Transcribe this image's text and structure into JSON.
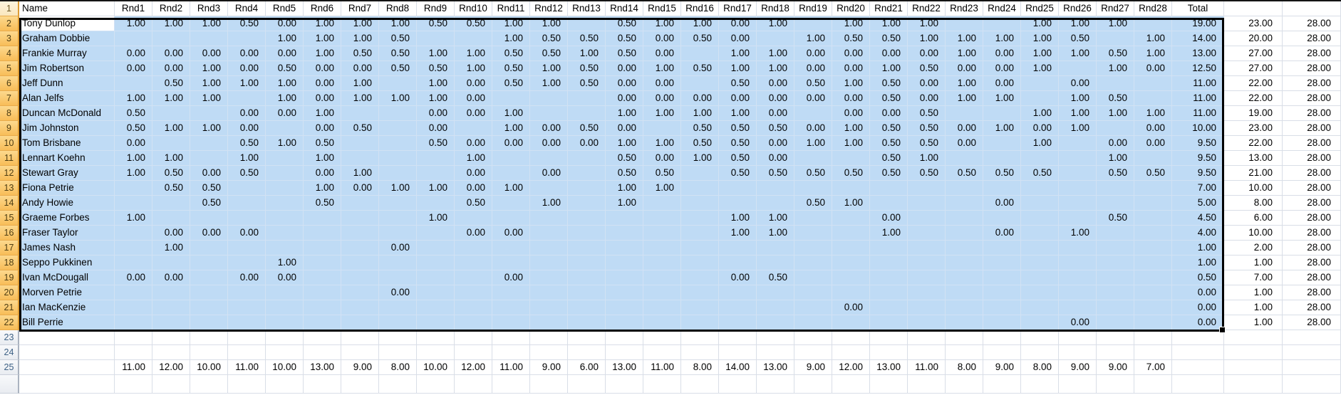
{
  "colors": {
    "selection_fill": "#BFDBF5",
    "selection_border": "#000000",
    "row_header_selected_top": "#FCD98E",
    "row_header_selected_bottom": "#F8BD58",
    "row_header_normal": "#EFF1F4",
    "row_header_normal_text": "#3D6185",
    "cell_text": "#000000"
  },
  "header": {
    "row_num": "1",
    "name_label": "Name",
    "round_labels": [
      "Rnd1",
      "Rnd2",
      "Rnd3",
      "Rnd4",
      "Rnd5",
      "Rnd6",
      "Rnd7",
      "Rnd8",
      "Rnd9",
      "Rnd10",
      "Rnd11",
      "Rnd12",
      "Rnd13",
      "Rnd14",
      "Rnd15",
      "Rnd16",
      "Rnd17",
      "Rnd18",
      "Rnd19",
      "Rnd20",
      "Rnd21",
      "Rnd22",
      "Rnd23",
      "Rnd24",
      "Rnd25",
      "Rnd26",
      "Rnd27",
      "Rnd28"
    ],
    "total_label": "Total"
  },
  "players": [
    {
      "row": "2",
      "name": "Tony Dunlop",
      "rounds": [
        "1.00",
        "1.00",
        "1.00",
        "0.50",
        "0.00",
        "1.00",
        "1.00",
        "1.00",
        "0.50",
        "0.50",
        "1.00",
        "1.00",
        "",
        "0.50",
        "1.00",
        "1.00",
        "0.00",
        "1.00",
        "",
        "1.00",
        "1.00",
        "1.00",
        "",
        "",
        "1.00",
        "1.00",
        "1.00",
        ""
      ],
      "total": "19.00",
      "played": "23.00",
      "max": "28.00"
    },
    {
      "row": "3",
      "name": "Graham Dobbie",
      "rounds": [
        "",
        "",
        "",
        "",
        "1.00",
        "1.00",
        "1.00",
        "0.50",
        "",
        "",
        "1.00",
        "0.50",
        "0.50",
        "0.50",
        "0.00",
        "0.50",
        "0.00",
        "",
        "1.00",
        "0.50",
        "0.50",
        "1.00",
        "1.00",
        "1.00",
        "1.00",
        "0.50",
        "",
        "1.00"
      ],
      "total": "14.00",
      "played": "20.00",
      "max": "28.00"
    },
    {
      "row": "4",
      "name": "Frankie Murray",
      "rounds": [
        "0.00",
        "0.00",
        "0.00",
        "0.00",
        "0.00",
        "1.00",
        "0.50",
        "0.50",
        "1.00",
        "1.00",
        "0.50",
        "0.50",
        "1.00",
        "0.50",
        "0.00",
        "",
        "1.00",
        "1.00",
        "0.00",
        "0.00",
        "0.00",
        "0.00",
        "1.00",
        "0.00",
        "1.00",
        "1.00",
        "0.50",
        "1.00"
      ],
      "total": "13.00",
      "played": "27.00",
      "max": "28.00"
    },
    {
      "row": "5",
      "name": "Jim Robertson",
      "rounds": [
        "0.00",
        "0.00",
        "1.00",
        "0.00",
        "0.50",
        "0.00",
        "0.00",
        "0.50",
        "0.50",
        "1.00",
        "0.50",
        "1.00",
        "0.50",
        "0.00",
        "1.00",
        "0.50",
        "1.00",
        "1.00",
        "0.00",
        "0.00",
        "1.00",
        "0.50",
        "0.00",
        "0.00",
        "1.00",
        "",
        "1.00",
        "0.00"
      ],
      "total": "12.50",
      "played": "27.00",
      "max": "28.00"
    },
    {
      "row": "6",
      "name": "Jeff Dunn",
      "rounds": [
        "",
        "0.50",
        "1.00",
        "1.00",
        "1.00",
        "0.00",
        "1.00",
        "",
        "1.00",
        "0.00",
        "0.50",
        "1.00",
        "0.50",
        "0.00",
        "0.00",
        "",
        "0.50",
        "0.00",
        "0.50",
        "1.00",
        "0.50",
        "0.00",
        "1.00",
        "0.00",
        "",
        "0.00",
        "",
        ""
      ],
      "total": "11.00",
      "played": "22.00",
      "max": "28.00"
    },
    {
      "row": "7",
      "name": "Alan Jelfs",
      "rounds": [
        "1.00",
        "1.00",
        "1.00",
        "",
        "1.00",
        "0.00",
        "1.00",
        "1.00",
        "1.00",
        "0.00",
        "",
        "",
        "",
        "0.00",
        "0.00",
        "0.00",
        "0.00",
        "0.00",
        "0.00",
        "0.00",
        "0.50",
        "0.00",
        "1.00",
        "1.00",
        "",
        "1.00",
        "0.50",
        ""
      ],
      "total": "11.00",
      "played": "22.00",
      "max": "28.00"
    },
    {
      "row": "8",
      "name": "Duncan McDonald",
      "rounds": [
        "0.50",
        "",
        "",
        "0.00",
        "0.00",
        "1.00",
        "",
        "",
        "0.00",
        "0.00",
        "1.00",
        "",
        "",
        "1.00",
        "1.00",
        "1.00",
        "1.00",
        "0.00",
        "",
        "0.00",
        "0.00",
        "0.50",
        "",
        "",
        "1.00",
        "1.00",
        "1.00",
        "1.00"
      ],
      "total": "11.00",
      "played": "19.00",
      "max": "28.00"
    },
    {
      "row": "9",
      "name": "Jim Johnston",
      "rounds": [
        "0.50",
        "1.00",
        "1.00",
        "0.00",
        "",
        "0.00",
        "0.50",
        "",
        "0.00",
        "",
        "1.00",
        "0.00",
        "0.50",
        "0.00",
        "",
        "0.50",
        "0.50",
        "0.50",
        "0.00",
        "1.00",
        "0.50",
        "0.50",
        "0.00",
        "1.00",
        "0.00",
        "1.00",
        "",
        "0.00"
      ],
      "total": "10.00",
      "played": "23.00",
      "max": "28.00"
    },
    {
      "row": "10",
      "name": "Tom Brisbane",
      "rounds": [
        "0.00",
        "",
        "",
        "0.50",
        "1.00",
        "0.50",
        "",
        "",
        "0.50",
        "0.00",
        "0.00",
        "0.00",
        "0.00",
        "1.00",
        "1.00",
        "0.50",
        "0.50",
        "0.00",
        "1.00",
        "1.00",
        "0.50",
        "0.50",
        "0.00",
        "",
        "1.00",
        "",
        "0.00",
        "0.00"
      ],
      "total": "9.50",
      "played": "22.00",
      "max": "28.00"
    },
    {
      "row": "11",
      "name": "Lennart Koehn",
      "rounds": [
        "1.00",
        "1.00",
        "",
        "1.00",
        "",
        "1.00",
        "",
        "",
        "",
        "1.00",
        "",
        "",
        "",
        "0.50",
        "0.00",
        "1.00",
        "0.50",
        "0.00",
        "",
        "",
        "0.50",
        "1.00",
        "",
        "",
        "",
        "",
        "1.00",
        ""
      ],
      "total": "9.50",
      "played": "13.00",
      "max": "28.00"
    },
    {
      "row": "12",
      "name": "Stewart Gray",
      "rounds": [
        "1.00",
        "0.50",
        "0.00",
        "0.50",
        "",
        "0.00",
        "1.00",
        "",
        "",
        "0.00",
        "",
        "0.00",
        "",
        "0.50",
        "0.50",
        "",
        "0.50",
        "0.50",
        "0.50",
        "0.50",
        "0.50",
        "0.50",
        "0.50",
        "0.50",
        "0.50",
        "",
        "0.50",
        "0.50"
      ],
      "total": "9.50",
      "played": "21.00",
      "max": "28.00"
    },
    {
      "row": "13",
      "name": "Fiona Petrie",
      "rounds": [
        "",
        "0.50",
        "0.50",
        "",
        "",
        "1.00",
        "0.00",
        "1.00",
        "1.00",
        "0.00",
        "1.00",
        "",
        "",
        "1.00",
        "1.00",
        "",
        "",
        "",
        "",
        "",
        "",
        "",
        "",
        "",
        "",
        "",
        "",
        ""
      ],
      "total": "7.00",
      "played": "10.00",
      "max": "28.00"
    },
    {
      "row": "14",
      "name": "Andy Howie",
      "rounds": [
        "",
        "",
        "0.50",
        "",
        "",
        "0.50",
        "",
        "",
        "",
        "0.50",
        "",
        "1.00",
        "",
        "1.00",
        "",
        "",
        "",
        "",
        "0.50",
        "1.00",
        "",
        "",
        "",
        "0.00",
        "",
        "",
        "",
        ""
      ],
      "total": "5.00",
      "played": "8.00",
      "max": "28.00"
    },
    {
      "row": "15",
      "name": "Graeme Forbes",
      "rounds": [
        "1.00",
        "",
        "",
        "",
        "",
        "",
        "",
        "",
        "1.00",
        "",
        "",
        "",
        "",
        "",
        "",
        "",
        "1.00",
        "1.00",
        "",
        "",
        "0.00",
        "",
        "",
        "",
        "",
        "",
        "0.50",
        ""
      ],
      "total": "4.50",
      "played": "6.00",
      "max": "28.00"
    },
    {
      "row": "16",
      "name": "Fraser Taylor",
      "rounds": [
        "",
        "0.00",
        "0.00",
        "0.00",
        "",
        "",
        "",
        "",
        "",
        "0.00",
        "0.00",
        "",
        "",
        "",
        "",
        "",
        "1.00",
        "1.00",
        "",
        "",
        "1.00",
        "",
        "",
        "0.00",
        "",
        "1.00",
        "",
        ""
      ],
      "total": "4.00",
      "played": "10.00",
      "max": "28.00"
    },
    {
      "row": "17",
      "name": "James Nash",
      "rounds": [
        "",
        "1.00",
        "",
        "",
        "",
        "",
        "",
        "0.00",
        "",
        "",
        "",
        "",
        "",
        "",
        "",
        "",
        "",
        "",
        "",
        "",
        "",
        "",
        "",
        "",
        "",
        "",
        "",
        ""
      ],
      "total": "1.00",
      "played": "2.00",
      "max": "28.00"
    },
    {
      "row": "18",
      "name": "Seppo Pukkinen",
      "rounds": [
        "",
        "",
        "",
        "",
        "1.00",
        "",
        "",
        "",
        "",
        "",
        "",
        "",
        "",
        "",
        "",
        "",
        "",
        "",
        "",
        "",
        "",
        "",
        "",
        "",
        "",
        "",
        "",
        ""
      ],
      "total": "1.00",
      "played": "1.00",
      "max": "28.00"
    },
    {
      "row": "19",
      "name": "Ivan McDougall",
      "rounds": [
        "0.00",
        "0.00",
        "",
        "0.00",
        "0.00",
        "",
        "",
        "",
        "",
        "",
        "0.00",
        "",
        "",
        "",
        "",
        "",
        "0.00",
        "0.50",
        "",
        "",
        "",
        "",
        "",
        "",
        "",
        "",
        "",
        ""
      ],
      "total": "0.50",
      "played": "7.00",
      "max": "28.00"
    },
    {
      "row": "20",
      "name": "Morven Petrie",
      "rounds": [
        "",
        "",
        "",
        "",
        "",
        "",
        "",
        "0.00",
        "",
        "",
        "",
        "",
        "",
        "",
        "",
        "",
        "",
        "",
        "",
        "",
        "",
        "",
        "",
        "",
        "",
        "",
        "",
        ""
      ],
      "total": "0.00",
      "played": "1.00",
      "max": "28.00"
    },
    {
      "row": "21",
      "name": "Ian MacKenzie",
      "rounds": [
        "",
        "",
        "",
        "",
        "",
        "",
        "",
        "",
        "",
        "",
        "",
        "",
        "",
        "",
        "",
        "",
        "",
        "",
        "",
        "0.00",
        "",
        "",
        "",
        "",
        "",
        "",
        "",
        ""
      ],
      "total": "0.00",
      "played": "1.00",
      "max": "28.00"
    },
    {
      "row": "22",
      "name": "Bill Perrie",
      "rounds": [
        "",
        "",
        "",
        "",
        "",
        "",
        "",
        "",
        "",
        "",
        "",
        "",
        "",
        "",
        "",
        "",
        "",
        "",
        "",
        "",
        "",
        "",
        "",
        "",
        "",
        "0.00",
        "",
        ""
      ],
      "total": "0.00",
      "played": "1.00",
      "max": "28.00"
    }
  ],
  "footer": {
    "empty_row_nums": [
      "23",
      "24"
    ],
    "sums_row_num": "25",
    "round_counts": [
      "11.00",
      "12.00",
      "10.00",
      "11.00",
      "10.00",
      "13.00",
      "9.00",
      "8.00",
      "10.00",
      "12.00",
      "11.00",
      "9.00",
      "6.00",
      "13.00",
      "11.00",
      "8.00",
      "14.00",
      "13.00",
      "9.00",
      "12.00",
      "13.00",
      "11.00",
      "8.00",
      "9.00",
      "8.00",
      "9.00",
      "9.00",
      "7.00"
    ]
  }
}
